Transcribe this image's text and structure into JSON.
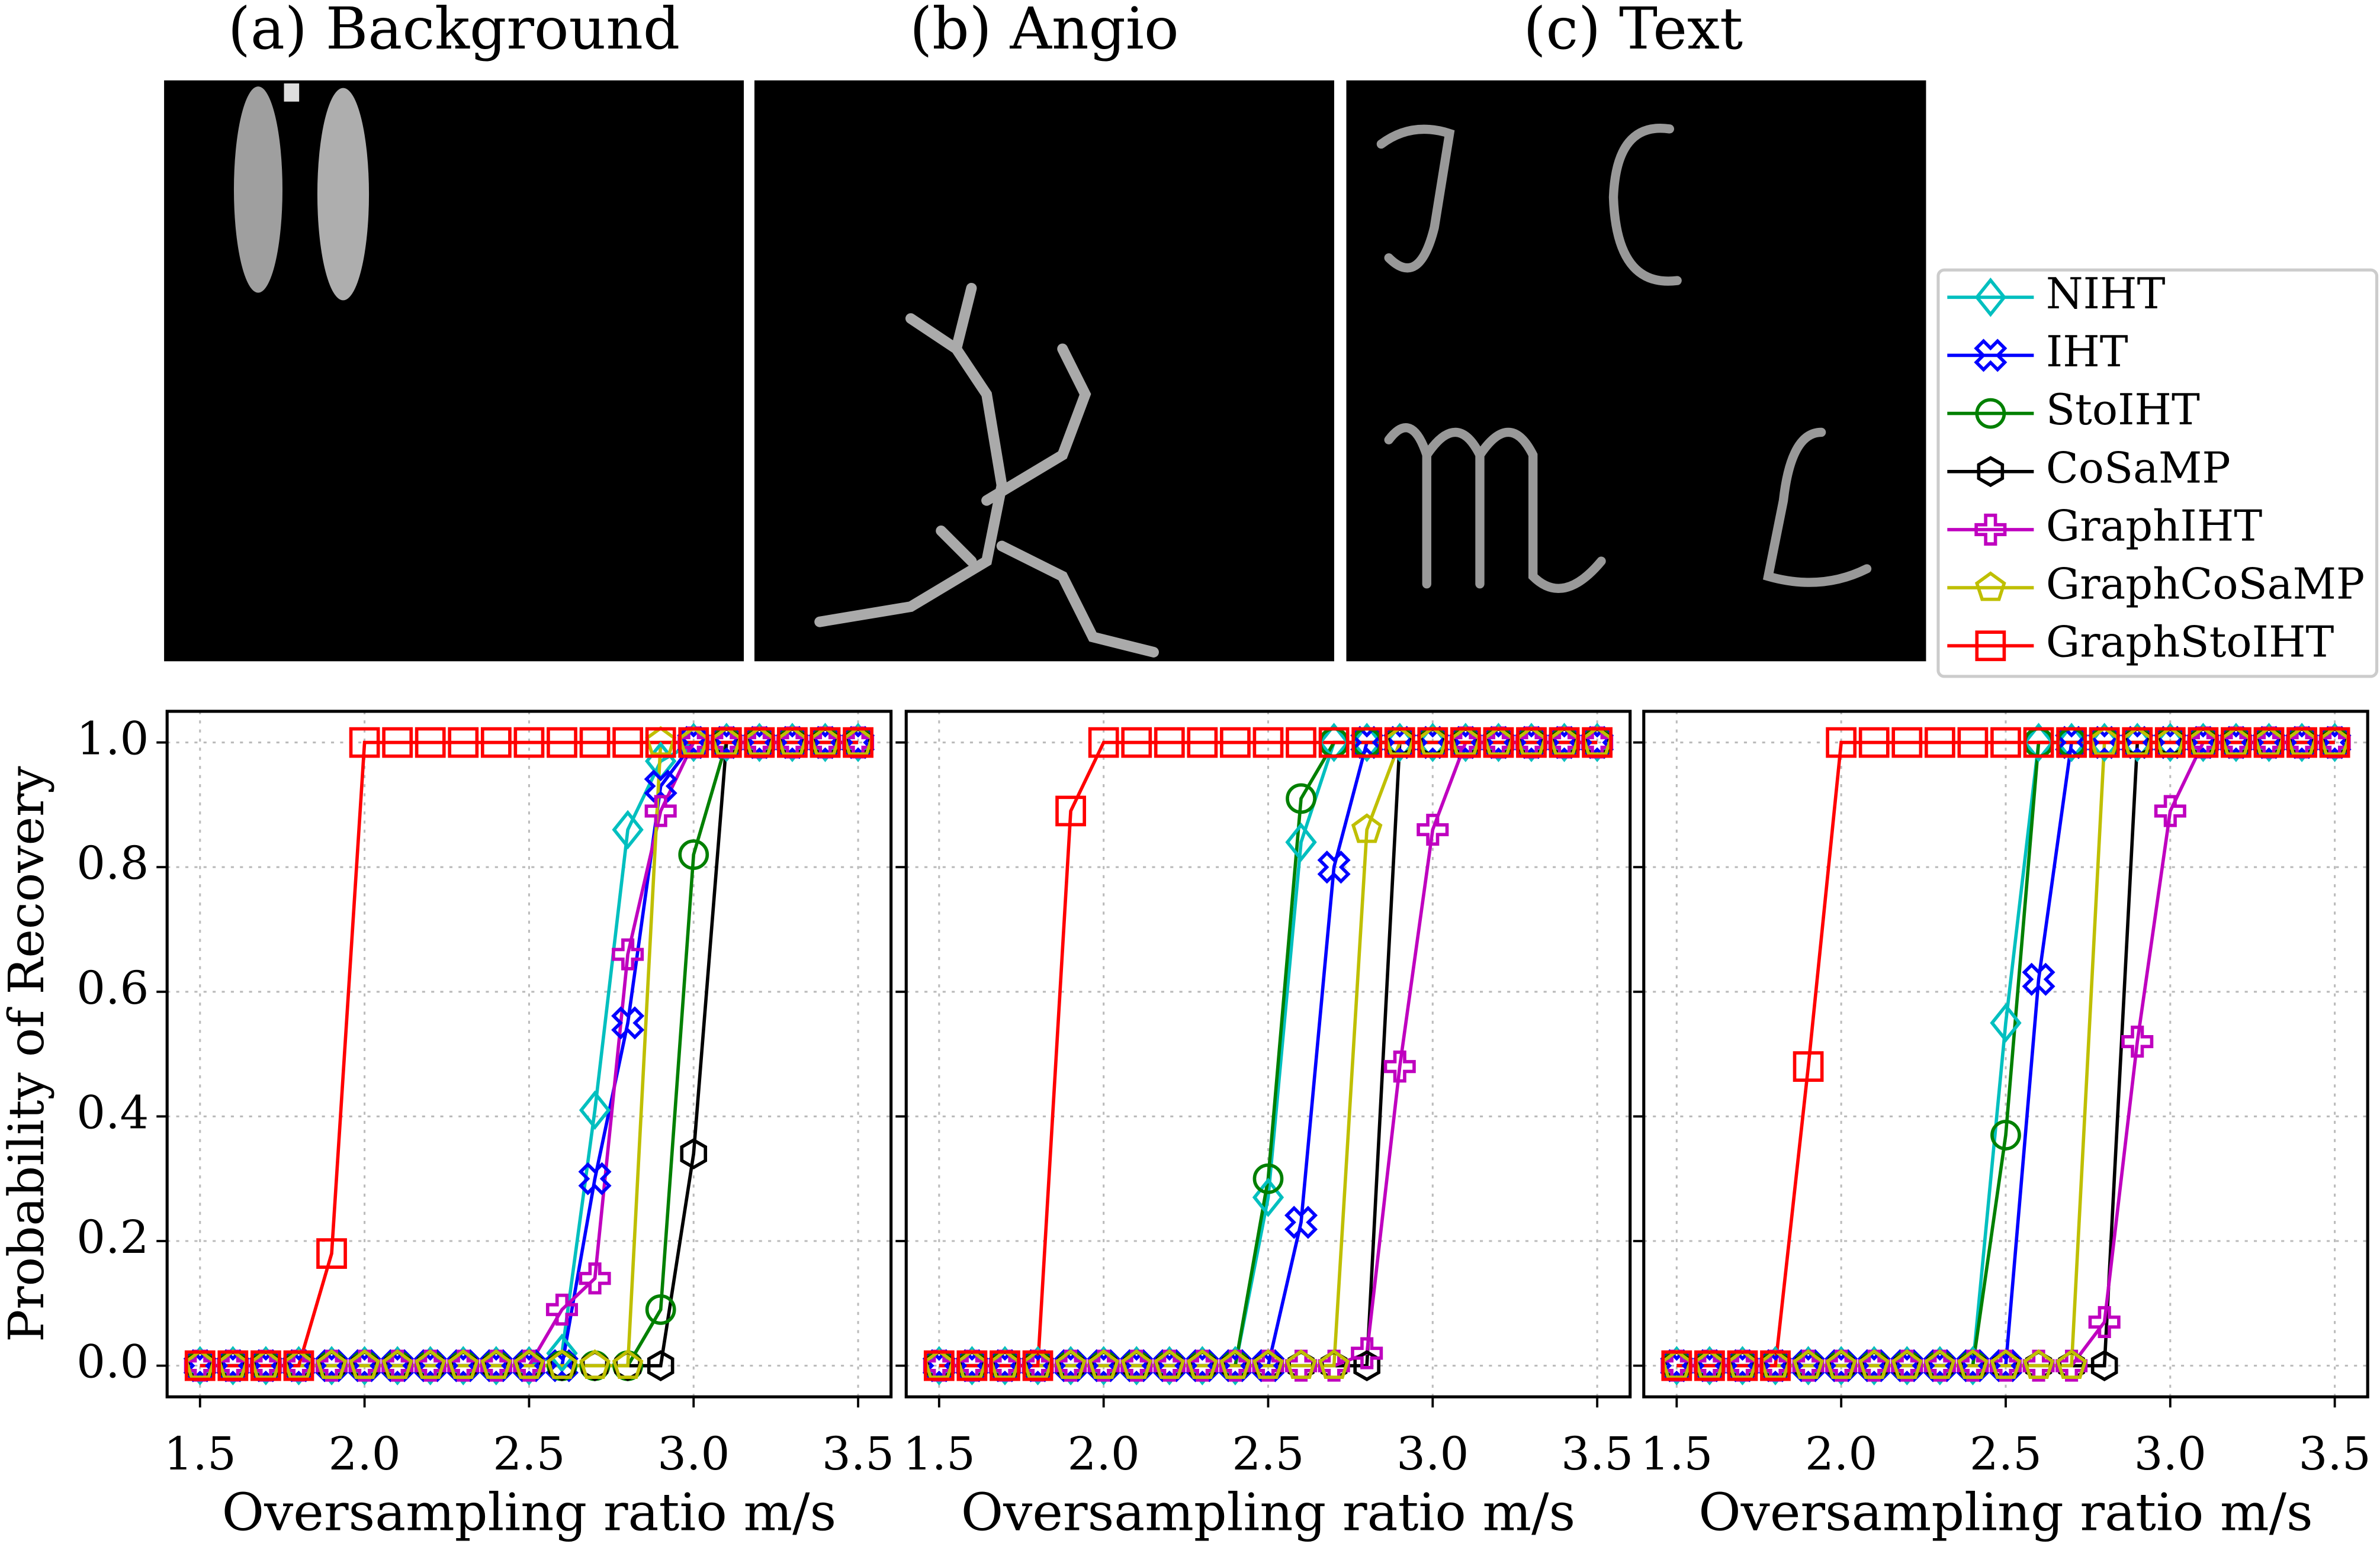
{
  "images": [
    {
      "title": "(a) Background"
    },
    {
      "title": "(b) Angio"
    },
    {
      "title": "(c) Text"
    }
  ],
  "chart_data": [
    {
      "type": "line",
      "ylabel": "Probability of Recovery",
      "xlabel": "Oversampling ratio m/s",
      "x": [
        1.5,
        1.6,
        1.7,
        1.8,
        1.9,
        2.0,
        2.1,
        2.2,
        2.3,
        2.4,
        2.5,
        2.6,
        2.7,
        2.8,
        2.9,
        3.0,
        3.1,
        3.2,
        3.3,
        3.4,
        3.5
      ],
      "xlim": [
        1.4,
        3.6
      ],
      "ylim": [
        -0.05,
        1.05
      ],
      "xticks": [
        1.5,
        {
          "value": 2,
          "label": "2.0"
        },
        2.5,
        {
          "value": 3,
          "label": "3.0"
        },
        3.5
      ],
      "yticks": [
        {
          "value": 0,
          "label": "0.0"
        },
        0.2,
        0.4,
        0.6,
        0.8,
        {
          "value": 1,
          "label": "1.0"
        }
      ],
      "grid": true,
      "series": [
        {
          "name": "NIHT",
          "color": "#00bfbf",
          "marker": "diamond",
          "values": [
            0,
            0,
            0,
            0,
            0,
            0,
            0,
            0,
            0,
            0,
            0,
            0.02,
            0.41,
            0.86,
            0.97,
            1,
            1,
            1,
            1,
            1,
            1
          ]
        },
        {
          "name": "IHT",
          "color": "#0000ff",
          "marker": "x",
          "values": [
            0,
            0,
            0,
            0,
            0,
            0,
            0,
            0,
            0,
            0,
            0,
            0,
            0.3,
            0.55,
            0.93,
            1,
            1,
            1,
            1,
            1,
            1
          ]
        },
        {
          "name": "StoIHT",
          "color": "#008000",
          "marker": "circle",
          "values": [
            0,
            0,
            0,
            0,
            0,
            0,
            0,
            0,
            0,
            0,
            0,
            0,
            0,
            0,
            0.09,
            0.82,
            1,
            1,
            1,
            1,
            1
          ]
        },
        {
          "name": "CoSaMP",
          "color": "#000000",
          "marker": "hexagon",
          "values": [
            0,
            0,
            0,
            0,
            0,
            0,
            0,
            0,
            0,
            0,
            0,
            0,
            0,
            0,
            0,
            0.34,
            1,
            1,
            1,
            1,
            1
          ]
        },
        {
          "name": "GraphIHT",
          "color": "#bf00bf",
          "marker": "plus",
          "values": [
            0,
            0,
            0,
            0,
            0,
            0,
            0,
            0,
            0,
            0,
            0,
            0.09,
            0.14,
            0.66,
            0.89,
            1,
            1,
            1,
            1,
            1,
            1
          ]
        },
        {
          "name": "GraphCoSaMP",
          "color": "#bfbf00",
          "marker": "pentagon",
          "values": [
            0,
            0,
            0,
            0,
            0,
            0,
            0,
            0,
            0,
            0,
            0,
            0,
            0,
            0,
            1,
            1,
            1,
            1,
            1,
            1,
            1
          ]
        },
        {
          "name": "GraphStoIHT",
          "color": "#ff0000",
          "marker": "square",
          "values": [
            0,
            0,
            0,
            0,
            0.18,
            1,
            1,
            1,
            1,
            1,
            1,
            1,
            1,
            1,
            1,
            1,
            1,
            1,
            1,
            1,
            1
          ]
        }
      ]
    },
    {
      "type": "line",
      "xlabel": "Oversampling ratio m/s",
      "x": [
        1.5,
        1.6,
        1.7,
        1.8,
        1.9,
        2.0,
        2.1,
        2.2,
        2.3,
        2.4,
        2.5,
        2.6,
        2.7,
        2.8,
        2.9,
        3.0,
        3.1,
        3.2,
        3.3,
        3.4,
        3.5
      ],
      "xlim": [
        1.4,
        3.6
      ],
      "ylim": [
        -0.05,
        1.05
      ],
      "xticks": [
        1.5,
        {
          "value": 2,
          "label": "2.0"
        },
        2.5,
        {
          "value": 3,
          "label": "3.0"
        },
        3.5
      ],
      "yticks": [
        0,
        0.2,
        0.4,
        0.6,
        0.8,
        1
      ],
      "grid": true,
      "series": [
        {
          "values": [
            0,
            0,
            0,
            0,
            0,
            0,
            0,
            0,
            0,
            0,
            0.27,
            0.84,
            1,
            1,
            1,
            1,
            1,
            1,
            1,
            1,
            1
          ]
        },
        {
          "values": [
            0,
            0,
            0,
            0,
            0,
            0,
            0,
            0,
            0,
            0,
            0,
            0.23,
            0.8,
            1,
            1,
            1,
            1,
            1,
            1,
            1,
            1
          ]
        },
        {
          "values": [
            0,
            0,
            0,
            0,
            0,
            0,
            0,
            0,
            0,
            0,
            0.3,
            0.91,
            1,
            1,
            1,
            1,
            1,
            1,
            1,
            1,
            1
          ]
        },
        {
          "values": [
            0,
            0,
            0,
            0,
            0,
            0,
            0,
            0,
            0,
            0,
            0,
            0,
            0,
            0,
            1,
            1,
            1,
            1,
            1,
            1,
            1
          ]
        },
        {
          "values": [
            0,
            0,
            0,
            0,
            0,
            0,
            0,
            0,
            0,
            0,
            0,
            0,
            0,
            0.02,
            0.48,
            0.86,
            1,
            1,
            1,
            1,
            1
          ]
        },
        {
          "values": [
            0,
            0,
            0,
            0,
            0,
            0,
            0,
            0,
            0,
            0,
            0,
            0,
            0,
            0.86,
            1,
            1,
            1,
            1,
            1,
            1,
            1
          ]
        },
        {
          "values": [
            0,
            0,
            0,
            0,
            0.89,
            1,
            1,
            1,
            1,
            1,
            1,
            1,
            1,
            1,
            1,
            1,
            1,
            1,
            1,
            1,
            1
          ]
        }
      ]
    },
    {
      "type": "line",
      "xlabel": "Oversampling ratio m/s",
      "x": [
        1.5,
        1.6,
        1.7,
        1.8,
        1.9,
        2.0,
        2.1,
        2.2,
        2.3,
        2.4,
        2.5,
        2.6,
        2.7,
        2.8,
        2.9,
        3.0,
        3.1,
        3.2,
        3.3,
        3.4,
        3.5
      ],
      "xlim": [
        1.4,
        3.6
      ],
      "ylim": [
        -0.05,
        1.05
      ],
      "xticks": [
        1.5,
        {
          "value": 2,
          "label": "2.0"
        },
        2.5,
        {
          "value": 3,
          "label": "3.0"
        },
        3.5
      ],
      "yticks": [
        0,
        0.2,
        0.4,
        0.6,
        0.8,
        1
      ],
      "grid": true,
      "series": [
        {
          "values": [
            0,
            0,
            0,
            0,
            0,
            0,
            0,
            0,
            0,
            0,
            0.55,
            1,
            1,
            1,
            1,
            1,
            1,
            1,
            1,
            1,
            1
          ]
        },
        {
          "values": [
            0,
            0,
            0,
            0,
            0,
            0,
            0,
            0,
            0,
            0,
            0,
            0.62,
            1,
            1,
            1,
            1,
            1,
            1,
            1,
            1,
            1
          ]
        },
        {
          "values": [
            0,
            0,
            0,
            0,
            0,
            0,
            0,
            0,
            0,
            0,
            0.37,
            1,
            1,
            1,
            1,
            1,
            1,
            1,
            1,
            1,
            1
          ]
        },
        {
          "values": [
            0,
            0,
            0,
            0,
            0,
            0,
            0,
            0,
            0,
            0,
            0,
            0,
            0,
            0,
            1,
            1,
            1,
            1,
            1,
            1,
            1
          ]
        },
        {
          "values": [
            0,
            0,
            0,
            0,
            0,
            0,
            0,
            0,
            0,
            0,
            0,
            0,
            0,
            0.07,
            0.52,
            0.89,
            1,
            1,
            1,
            1,
            1
          ]
        },
        {
          "values": [
            0,
            0,
            0,
            0,
            0,
            0,
            0,
            0,
            0,
            0,
            0,
            0,
            0,
            1,
            1,
            1,
            1,
            1,
            1,
            1,
            1
          ]
        },
        {
          "values": [
            0,
            0,
            0,
            0,
            0.48,
            1,
            1,
            1,
            1,
            1,
            1,
            1,
            1,
            1,
            1,
            1,
            1,
            1,
            1,
            1,
            1
          ]
        }
      ]
    }
  ]
}
